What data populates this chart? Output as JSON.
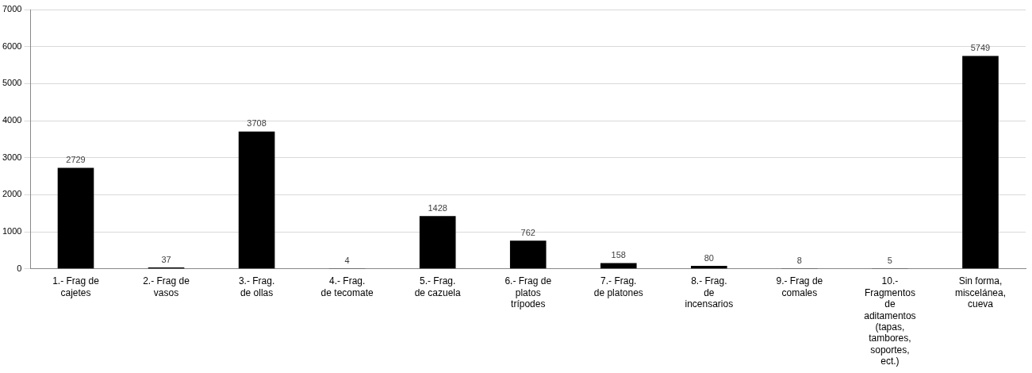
{
  "chart_data": {
    "type": "bar",
    "categories": [
      "1.-  Frag de cajetes",
      "2.- Frag de vasos",
      "3.- Frag. de ollas",
      "4.- Frag. de tecomate",
      "5.- Frag. de cazuela",
      "6.- Frag de platos trípodes",
      "7.- Frag. de platones",
      "8.- Frag. de incensarios",
      "9.- Frag de comales",
      "10.- Fragmentos de aditamentos (tapas, tambores, soportes, ect.)",
      "Sin forma, miscelánea, cueva"
    ],
    "values": [
      2729,
      37,
      3708,
      4,
      1428,
      762,
      158,
      80,
      8,
      5,
      5749
    ],
    "color": "#000000",
    "ylim": [
      0,
      7000
    ],
    "yticks": [
      0,
      1000,
      2000,
      3000,
      4000,
      5000,
      6000,
      7000
    ],
    "grid": "y",
    "legend": false,
    "data_labels": true
  }
}
